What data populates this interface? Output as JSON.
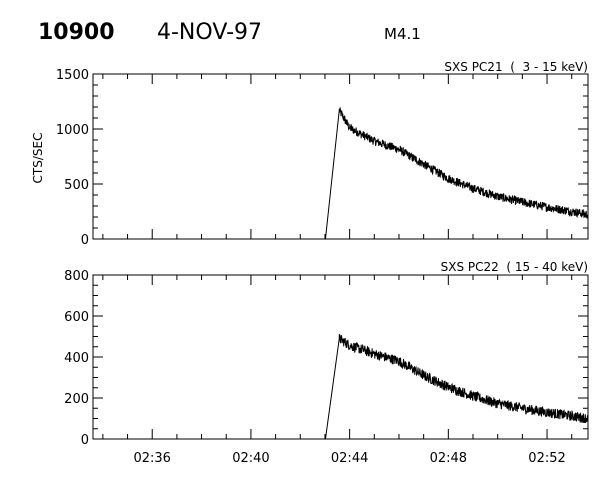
{
  "header": {
    "region": "10900",
    "date": "4-NOV-97",
    "class": "M4.1"
  },
  "chart_data": [
    {
      "type": "line",
      "title": "SXS PC21  (  3 - 15 keV)",
      "xlabel": "",
      "ylabel": "CTS/SEC",
      "x_units": "minutes after 02:00 UT",
      "xlim": [
        33.6,
        53.66
      ],
      "ylim": [
        0,
        1500
      ],
      "yticks": [
        "0",
        "500",
        "1000",
        "1500"
      ],
      "ytick_values": [
        0,
        500,
        1000,
        1500
      ],
      "yminor_step": 100,
      "xticks": [],
      "noise_amplitude": 40,
      "envelope": [
        [
          33.6,
          0
        ],
        [
          43.02,
          0
        ],
        [
          43.58,
          1170
        ],
        [
          44,
          1010
        ],
        [
          45,
          890
        ],
        [
          46,
          814
        ],
        [
          47,
          680
        ],
        [
          48,
          551
        ],
        [
          49,
          460
        ],
        [
          50,
          387
        ],
        [
          51,
          335
        ],
        [
          52,
          290
        ],
        [
          53,
          250
        ],
        [
          53.66,
          223
        ]
      ],
      "grid": false
    },
    {
      "type": "line",
      "title": "SXS PC22  ( 15 - 40 keV)",
      "xlabel": "",
      "ylabel": "",
      "x_units": "minutes after 02:00 UT",
      "xlim": [
        33.6,
        53.66
      ],
      "ylim": [
        0,
        800
      ],
      "yticks": [
        "0",
        "200",
        "400",
        "600",
        "800"
      ],
      "ytick_values": [
        0,
        200,
        400,
        600,
        800
      ],
      "yminor_step": 50,
      "xticks": [
        "02:36",
        "02:40",
        "02:44",
        "02:48",
        "02:52"
      ],
      "xtick_values": [
        36,
        40,
        44,
        48,
        52
      ],
      "noise_amplitude": 25,
      "envelope": [
        [
          33.6,
          0
        ],
        [
          43.02,
          0
        ],
        [
          43.58,
          490
        ],
        [
          44,
          457
        ],
        [
          45,
          415
        ],
        [
          46,
          380
        ],
        [
          47,
          310
        ],
        [
          48,
          253
        ],
        [
          49,
          210
        ],
        [
          50,
          173
        ],
        [
          51,
          150
        ],
        [
          52,
          130
        ],
        [
          53,
          112
        ],
        [
          53.66,
          100
        ]
      ],
      "grid": false
    }
  ]
}
